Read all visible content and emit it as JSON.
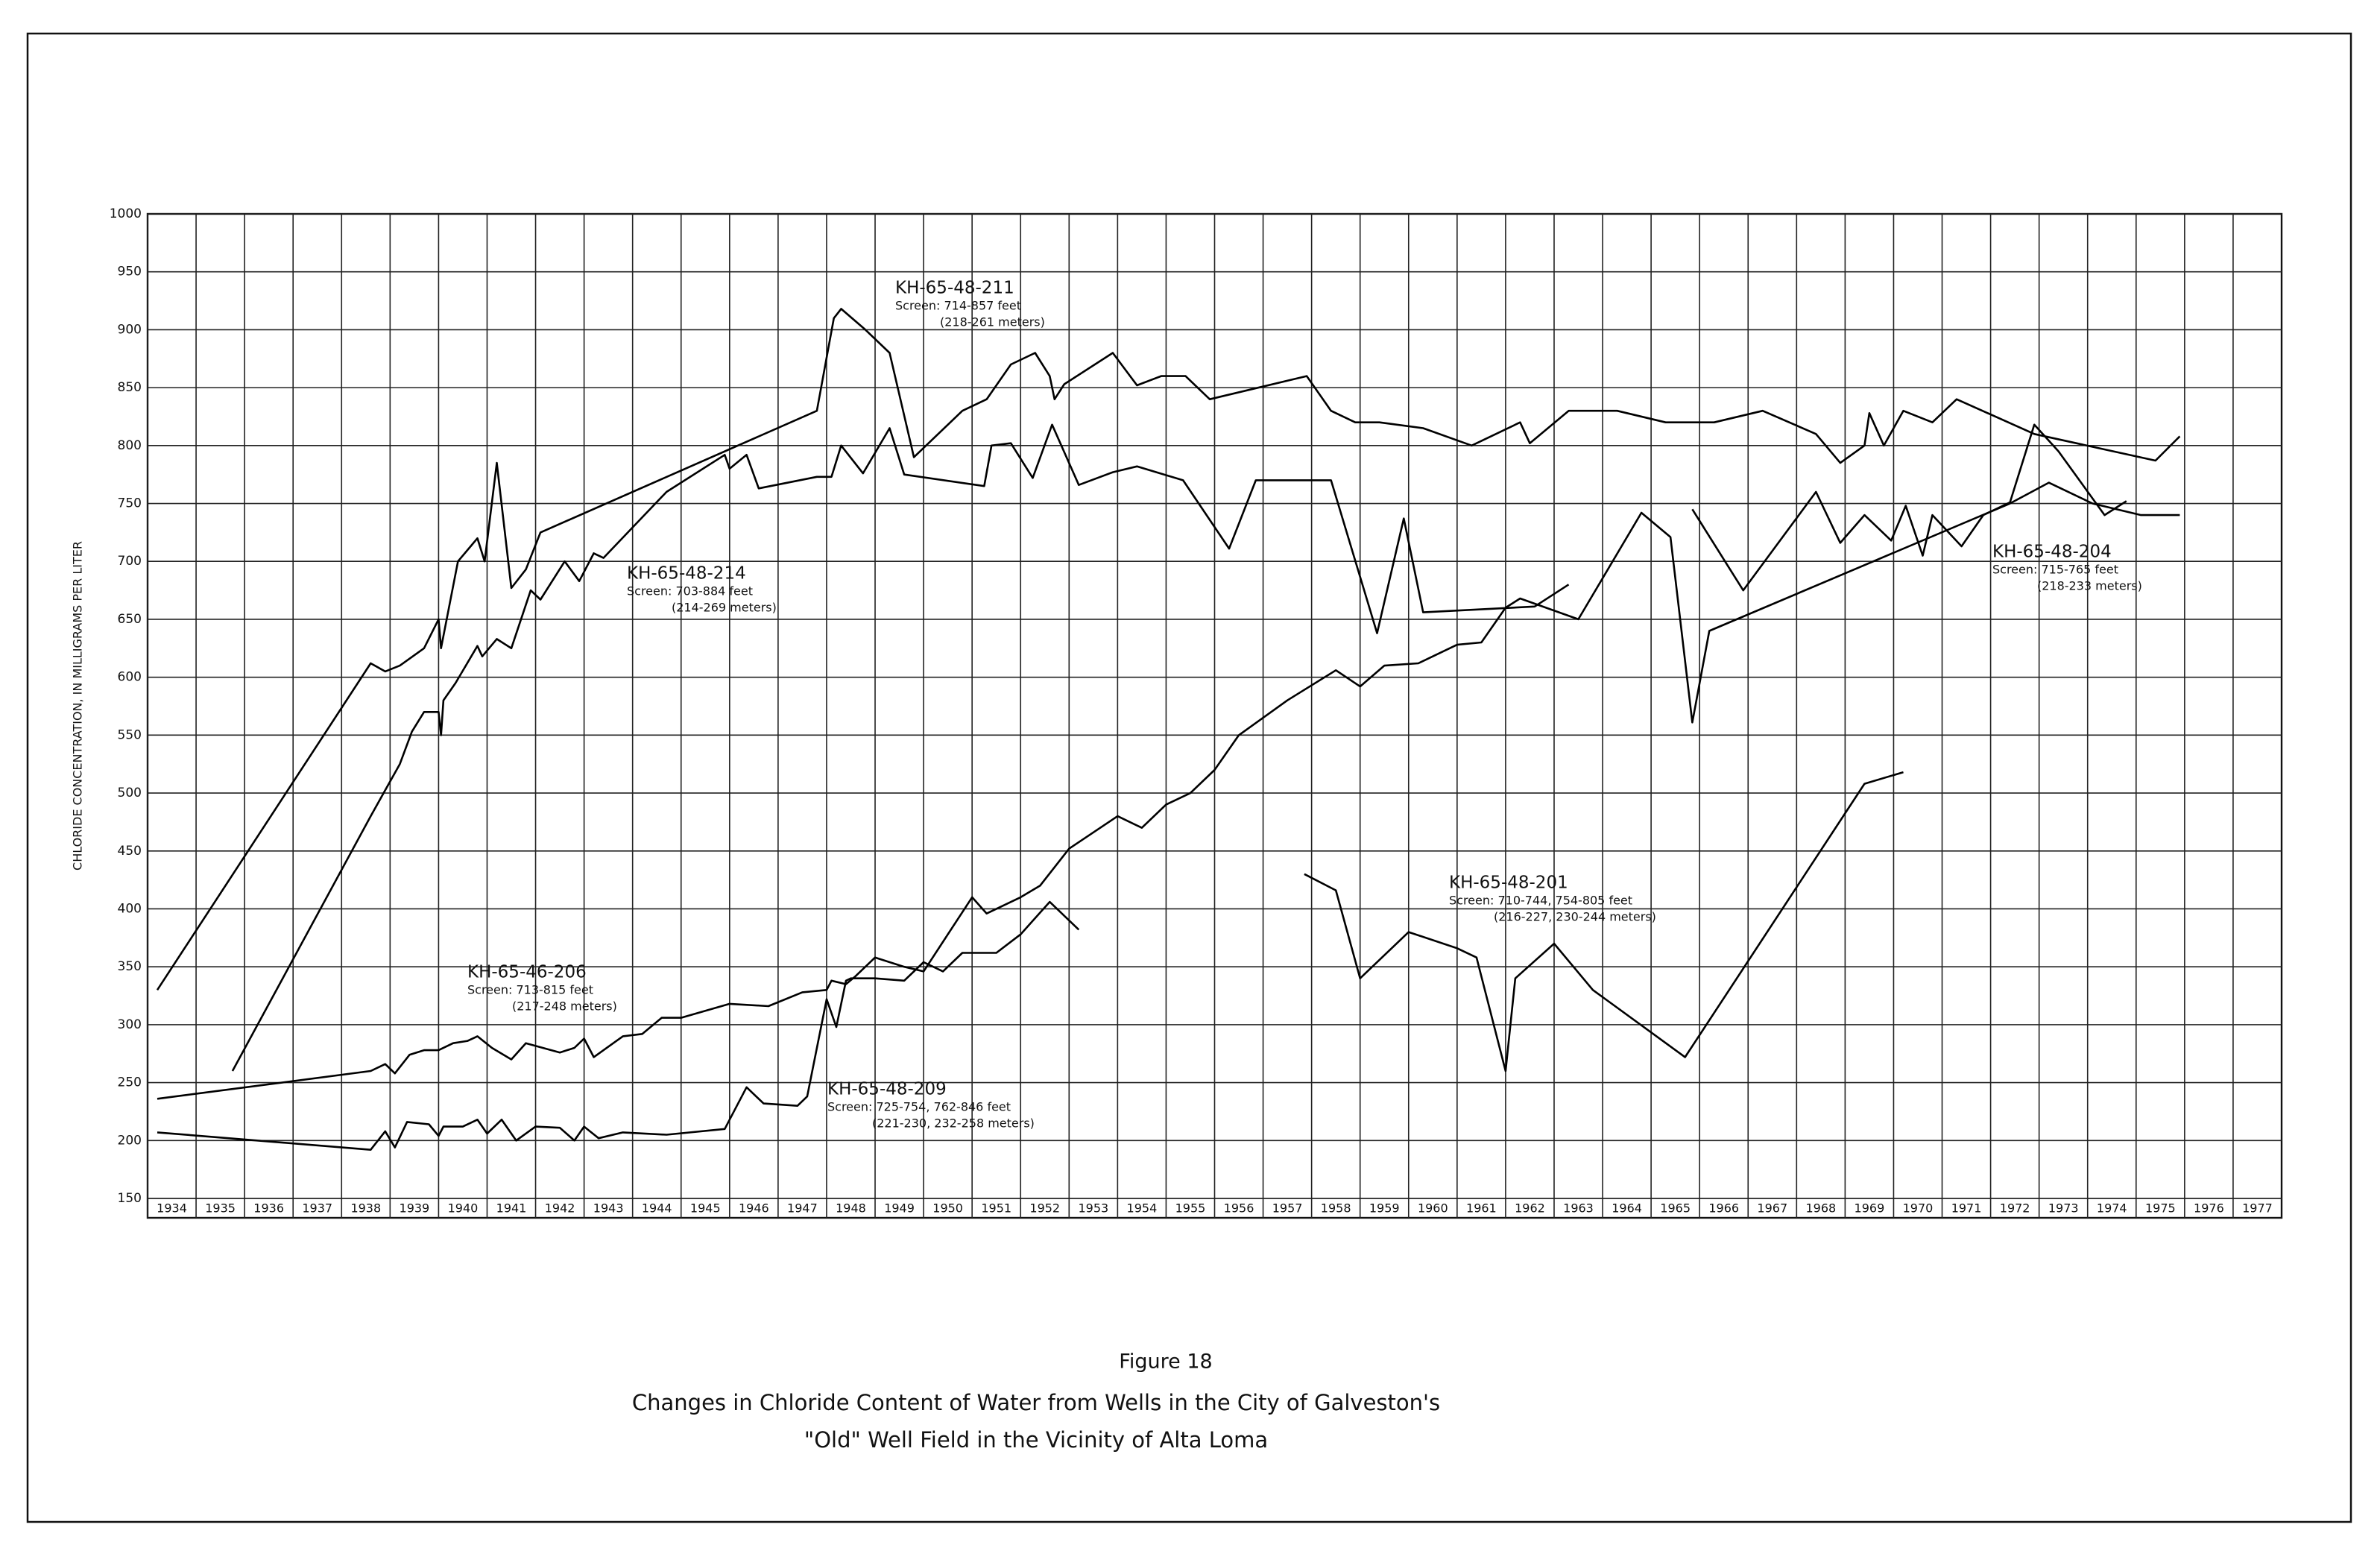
{
  "chart_data": {
    "type": "line",
    "title": "Figure 18",
    "subtitle": [
      "Changes in Chloride Content of Water from Wells in the City of Galveston's",
      "\"Old\" Well Field in the Vicinity of Alta Loma"
    ],
    "y_label": "CHLORIDE CONCENTRATION, IN MILLIGRAMS PER LITER",
    "xlim": [
      1934,
      1978
    ],
    "xticks": [
      1934,
      1935,
      1936,
      1937,
      1938,
      1939,
      1940,
      1941,
      1942,
      1943,
      1944,
      1945,
      1946,
      1947,
      1948,
      1949,
      1950,
      1951,
      1952,
      1953,
      1954,
      1955,
      1956,
      1957,
      1958,
      1959,
      1960,
      1961,
      1962,
      1963,
      1964,
      1965,
      1966,
      1967,
      1968,
      1969,
      1970,
      1971,
      1972,
      1973,
      1974,
      1975,
      1976,
      1977
    ],
    "ylim": [
      150,
      1000
    ],
    "yticks": [
      150,
      200,
      250,
      300,
      350,
      400,
      450,
      500,
      550,
      600,
      650,
      700,
      750,
      800,
      850,
      900,
      950,
      1000
    ],
    "grid": true,
    "color": "#000000",
    "series": [
      {
        "name": "KH-65-48-211",
        "note": [
          "Screen: 714-857 feet",
          "(218-261 meters)"
        ],
        "x": [
          1934.2,
          1938.6,
          1938.9,
          1939.2,
          1939.7,
          1940.0,
          1940.05,
          1940.4,
          1940.8,
          1940.95,
          1941.2,
          1941.5,
          1941.8,
          1942.1,
          1947.8,
          1948.15,
          1948.3,
          1948.8,
          1949.3,
          1949.8,
          1950.8,
          1951.3,
          1951.8,
          1952.3,
          1952.6,
          1952.7,
          1952.9,
          1953.9,
          1954.4,
          1954.9,
          1955.4,
          1955.9,
          1957.9,
          1958.4,
          1958.9,
          1959.4,
          1960.3,
          1961.3,
          1962.3,
          1962.5,
          1963.3,
          1964.3,
          1965.3,
          1966.3,
          1967.3,
          1968.4,
          1968.9,
          1969.4,
          1969.5,
          1969.8,
          1970.2,
          1970.8,
          1971.3,
          1972.9,
          1975.4,
          1975.9
        ],
        "values": [
          330,
          612,
          605,
          610,
          625,
          650,
          625,
          700,
          720,
          700,
          785,
          677,
          693,
          725,
          830,
          910,
          918,
          900,
          880,
          790,
          830,
          840,
          870,
          880,
          860,
          840,
          853,
          880,
          852,
          860,
          860,
          840,
          860,
          830,
          820,
          820,
          815,
          800,
          820,
          802,
          830,
          830,
          820,
          820,
          830,
          810,
          785,
          800,
          828,
          800,
          830,
          820,
          840,
          810,
          787,
          808
        ]
      },
      {
        "name": "KH-65-48-214",
        "note": [
          "Screen: 703-884 feet",
          "(214-269 meters)"
        ],
        "x": [
          1935.75,
          1938.6,
          1939.2,
          1939.45,
          1939.7,
          1940.0,
          1940.05,
          1940.1,
          1940.35,
          1940.8,
          1940.9,
          1941.2,
          1941.5,
          1941.9,
          1942.1,
          1942.6,
          1942.9,
          1943.2,
          1943.4,
          1944.7,
          1945.9,
          1946.0,
          1946.35,
          1946.6,
          1947.8,
          1948.1,
          1948.3,
          1948.75,
          1949.3,
          1949.6,
          1951.25,
          1951.4,
          1951.8,
          1952.25,
          1952.65,
          1953.2,
          1953.9,
          1954.4,
          1955.35,
          1956.3,
          1956.85,
          1958.4,
          1959.35,
          1959.9,
          1960.3,
          1962.6,
          1963.3
        ],
        "values": [
          260,
          480,
          525,
          553,
          570,
          570,
          550,
          580,
          595,
          627,
          618,
          633,
          625,
          675,
          667,
          700,
          683,
          707,
          703,
          760,
          792,
          780,
          792,
          763,
          773,
          773,
          800,
          776,
          815,
          775,
          765,
          800,
          802,
          772,
          818,
          766,
          777,
          782,
          770,
          711,
          770,
          770,
          638,
          737,
          656,
          661,
          680
        ]
      },
      {
        "name": "KH-65-46-206",
        "note": [
          "Screen: 713-815 feet",
          "(217-248 meters)"
        ],
        "x": [
          1934.2,
          1938.6,
          1938.9,
          1939.1,
          1939.4,
          1939.7,
          1940.0,
          1940.3,
          1940.6,
          1940.8,
          1941.1,
          1941.5,
          1941.8,
          1942.5,
          1942.8,
          1943.0,
          1943.2,
          1943.8,
          1944.2,
          1944.6,
          1945.0,
          1946.0,
          1946.8,
          1947.5,
          1948.0,
          1948.1,
          1948.4,
          1948.6,
          1949.0,
          1949.6,
          1950.0,
          1951.0,
          1951.3,
          1952.0,
          1952.4,
          1953.0,
          1954.0,
          1954.5,
          1955.0,
          1955.5,
          1956.0,
          1956.5,
          1957.5,
          1958.5,
          1959.0,
          1959.5,
          1960.2,
          1961.0,
          1961.5,
          1962.0,
          1962.3,
          1963.5,
          1964.8,
          1965.4,
          1965.85,
          1966.2,
          1972.4,
          1973.2,
          1974.1,
          1975.1,
          1975.9
        ],
        "values": [
          236,
          260,
          266,
          258,
          274,
          278,
          278,
          284,
          286,
          290,
          280,
          270,
          284,
          276,
          280,
          288,
          272,
          290,
          292,
          306,
          306,
          318,
          316,
          328,
          330,
          338,
          335,
          342,
          358,
          350,
          346,
          410,
          396,
          410,
          420,
          452,
          480,
          470,
          490,
          500,
          520,
          550,
          580,
          606,
          592,
          610,
          612,
          628,
          630,
          660,
          668,
          650,
          742,
          721,
          561,
          640,
          750,
          768,
          750,
          740,
          740
        ]
      },
      {
        "name": "KH-65-48-209",
        "note": [
          "Screen: 725-754, 762-846 feet",
          "(221-230, 232-258 meters)"
        ],
        "x": [
          1934.2,
          1938.6,
          1938.9,
          1939.1,
          1939.35,
          1939.8,
          1940.0,
          1940.1,
          1940.5,
          1940.8,
          1941.0,
          1941.3,
          1941.6,
          1942.0,
          1942.5,
          1942.8,
          1943.0,
          1943.3,
          1943.8,
          1944.7,
          1945.9,
          1946.35,
          1946.7,
          1947.4,
          1947.6,
          1948.0,
          1948.2,
          1948.4,
          1948.5,
          1949.0,
          1949.6,
          1950.0,
          1950.4,
          1950.8,
          1951.5,
          1952.0,
          1952.6,
          1953.2
        ],
        "values": [
          207,
          192,
          208,
          194,
          216,
          214,
          204,
          212,
          212,
          218,
          206,
          218,
          200,
          212,
          211,
          200,
          212,
          202,
          207,
          205,
          210,
          246,
          232,
          230,
          238,
          322,
          298,
          338,
          340,
          340,
          338,
          354,
          346,
          362,
          362,
          378,
          406,
          382
        ]
      },
      {
        "name": "KH-65-48-201",
        "note": [
          "Screen: 710-744, 754-805 feet",
          "(216-227, 230-244 meters)"
        ],
        "x": [
          1957.85,
          1958.5,
          1959.0,
          1960.0,
          1961.0,
          1961.4,
          1962.0,
          1962.2,
          1963.0,
          1963.8,
          1965.7,
          1969.4,
          1970.2
        ],
        "values": [
          430,
          416,
          340,
          380,
          366,
          358,
          260,
          340,
          370,
          330,
          272,
          508,
          518
        ]
      },
      {
        "name": "KH-65-48-204",
        "note": [
          "Screen: 715-765 feet",
          "(218-233 meters)"
        ],
        "x": [
          1965.85,
          1966.9,
          1968.4,
          1968.9,
          1969.4,
          1969.95,
          1970.25,
          1970.6,
          1970.8,
          1971.4,
          1971.85,
          1972.4,
          1972.9,
          1973.4,
          1974.35,
          1974.8
        ],
        "values": [
          745,
          675,
          760,
          716,
          740,
          718,
          748,
          705,
          740,
          713,
          740,
          751,
          818,
          795,
          740,
          752
        ]
      }
    ]
  }
}
